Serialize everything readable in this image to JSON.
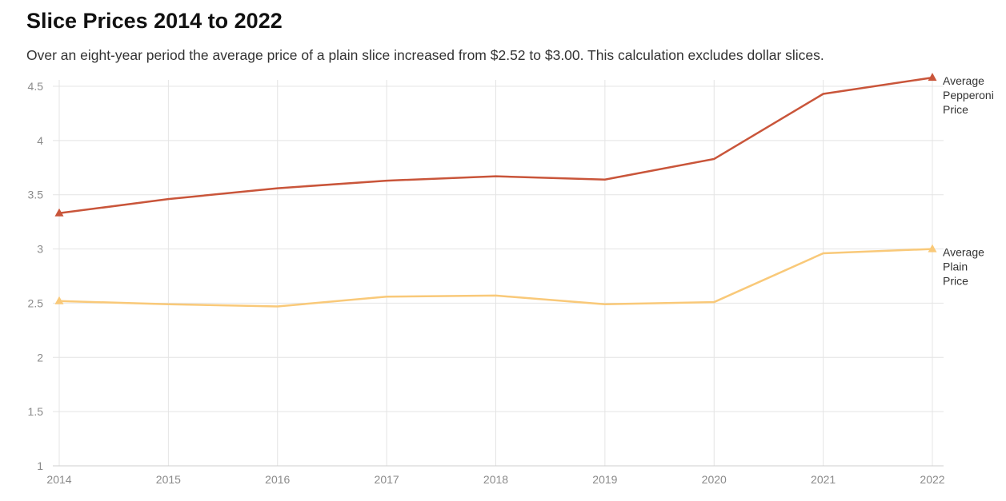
{
  "chart_data": {
    "type": "line",
    "title": "Slice Prices 2014 to 2022",
    "subtitle": "Over an eight-year period the average price of a plain slice increased from $2.52 to $3.00. This calculation excludes dollar slices.",
    "xlabel": "",
    "ylabel": "",
    "x": [
      "2014",
      "2015",
      "2016",
      "2017",
      "2018",
      "2019",
      "2020",
      "2021",
      "2022"
    ],
    "ylim": [
      1,
      4.5
    ],
    "yticks": [
      "1",
      "1.5",
      "2",
      "2.5",
      "3",
      "3.5",
      "4",
      "4.5"
    ],
    "grid": true,
    "legend": "none (series labelled at right end of lines)",
    "series": [
      {
        "name": "Average Pepperoni Price",
        "label_lines": [
          "Average",
          "Pepperoni",
          "Price"
        ],
        "color": "#c9553a",
        "values": [
          3.33,
          3.46,
          3.56,
          3.63,
          3.67,
          3.64,
          3.83,
          4.43,
          4.58
        ]
      },
      {
        "name": "Average Plain Price",
        "label_lines": [
          "Average",
          "Plain",
          "Price"
        ],
        "color": "#f9c979",
        "values": [
          2.52,
          2.49,
          2.47,
          2.56,
          2.57,
          2.49,
          2.51,
          2.96,
          3.0
        ]
      }
    ]
  }
}
